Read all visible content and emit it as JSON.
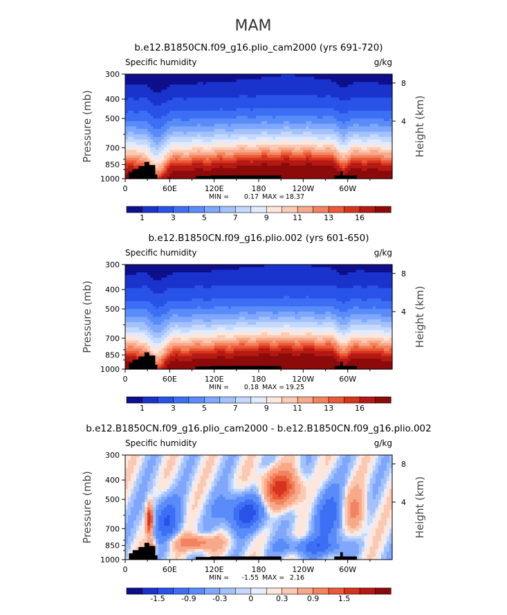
{
  "figure": {
    "season_title": "MAM"
  },
  "palettes": {
    "full": [
      "#0f0f8c",
      "#1a33cc",
      "#2952e8",
      "#3d6ff5",
      "#5a8cf9",
      "#7fa7fb",
      "#a3c2fc",
      "#c5d8fd",
      "#e2ebfd",
      "#fde7dc",
      "#fbcab4",
      "#f8a98a",
      "#f3835f",
      "#ea5a36",
      "#d7341e",
      "#b51914",
      "#8c0a0a"
    ],
    "diff": [
      "#0f0f8c",
      "#1a33cc",
      "#2952e8",
      "#3d6ff5",
      "#5a8cf9",
      "#7fa7fb",
      "#a3c2fc",
      "#c5d8fd",
      "#e6eefd",
      "#fde6dc",
      "#fbc8b2",
      "#f8a98a",
      "#f3835f",
      "#ea5a36",
      "#d7341e",
      "#b51914",
      "#8c0a0a"
    ]
  },
  "chart_data": [
    {
      "type": "heatmap",
      "title": "b.e12.B1850CN.f09_g16.plio_cam2000 (yrs 691-720)",
      "left_label": "Specific humidity",
      "right_label": "g/kg",
      "ylabel": "Pressure (mb)",
      "y2label": "Height (km)",
      "yticks": [
        300,
        400,
        500,
        700,
        850,
        1000
      ],
      "y2ticks": [
        "8",
        "4"
      ],
      "xticks": [
        "0",
        "60E",
        "120E",
        "180",
        "120W",
        "60W"
      ],
      "xlim": [
        0,
        360
      ],
      "ylim": [
        1000,
        300
      ],
      "min_label": "MIN =",
      "min_value": "0.17",
      "max_label": "MAX =",
      "max_value": "18.37",
      "colorbar_labels": [
        "1",
        "3",
        "5",
        "7",
        "9",
        "11",
        "13",
        "16"
      ],
      "palette": "full",
      "field": "mean"
    },
    {
      "type": "heatmap",
      "title": "b.e12.B1850CN.f09_g16.plio.002 (yrs 601-650)",
      "left_label": "Specific humidity",
      "right_label": "g/kg",
      "ylabel": "Pressure (mb)",
      "y2label": "Height (km)",
      "yticks": [
        300,
        400,
        500,
        700,
        850,
        1000
      ],
      "y2ticks": [
        "8",
        "4"
      ],
      "xticks": [
        "0",
        "60E",
        "120E",
        "180",
        "120W",
        "60W"
      ],
      "xlim": [
        0,
        360
      ],
      "ylim": [
        1000,
        300
      ],
      "min_label": "MIN =",
      "min_value": "0.18",
      "max_label": "MAX =",
      "max_value": "19.25",
      "colorbar_labels": [
        "1",
        "3",
        "5",
        "7",
        "9",
        "11",
        "13",
        "16"
      ],
      "palette": "full",
      "field": "mean"
    },
    {
      "type": "heatmap",
      "title": "b.e12.B1850CN.f09_g16.plio_cam2000 - b.e12.B1850CN.f09_g16.plio.002",
      "left_label": "Specific humidity",
      "right_label": "g/kg",
      "ylabel": "Pressure (mb)",
      "y2label": "Height (km)",
      "yticks": [
        300,
        400,
        500,
        700,
        850,
        1000
      ],
      "y2ticks": [
        "8",
        "4"
      ],
      "xticks": [
        "0",
        "60E",
        "120E",
        "180",
        "120W",
        "60W"
      ],
      "xlim": [
        0,
        360
      ],
      "ylim": [
        1000,
        300
      ],
      "min_label": "MIN =",
      "min_value": "-1.55",
      "max_label": "MAX =",
      "max_value": "2.16",
      "colorbar_labels": [
        "-1.5",
        "-0.9",
        "-0.3",
        "0",
        "0.3",
        "0.9",
        "1.5"
      ],
      "palette": "diff",
      "field": "diff"
    }
  ]
}
